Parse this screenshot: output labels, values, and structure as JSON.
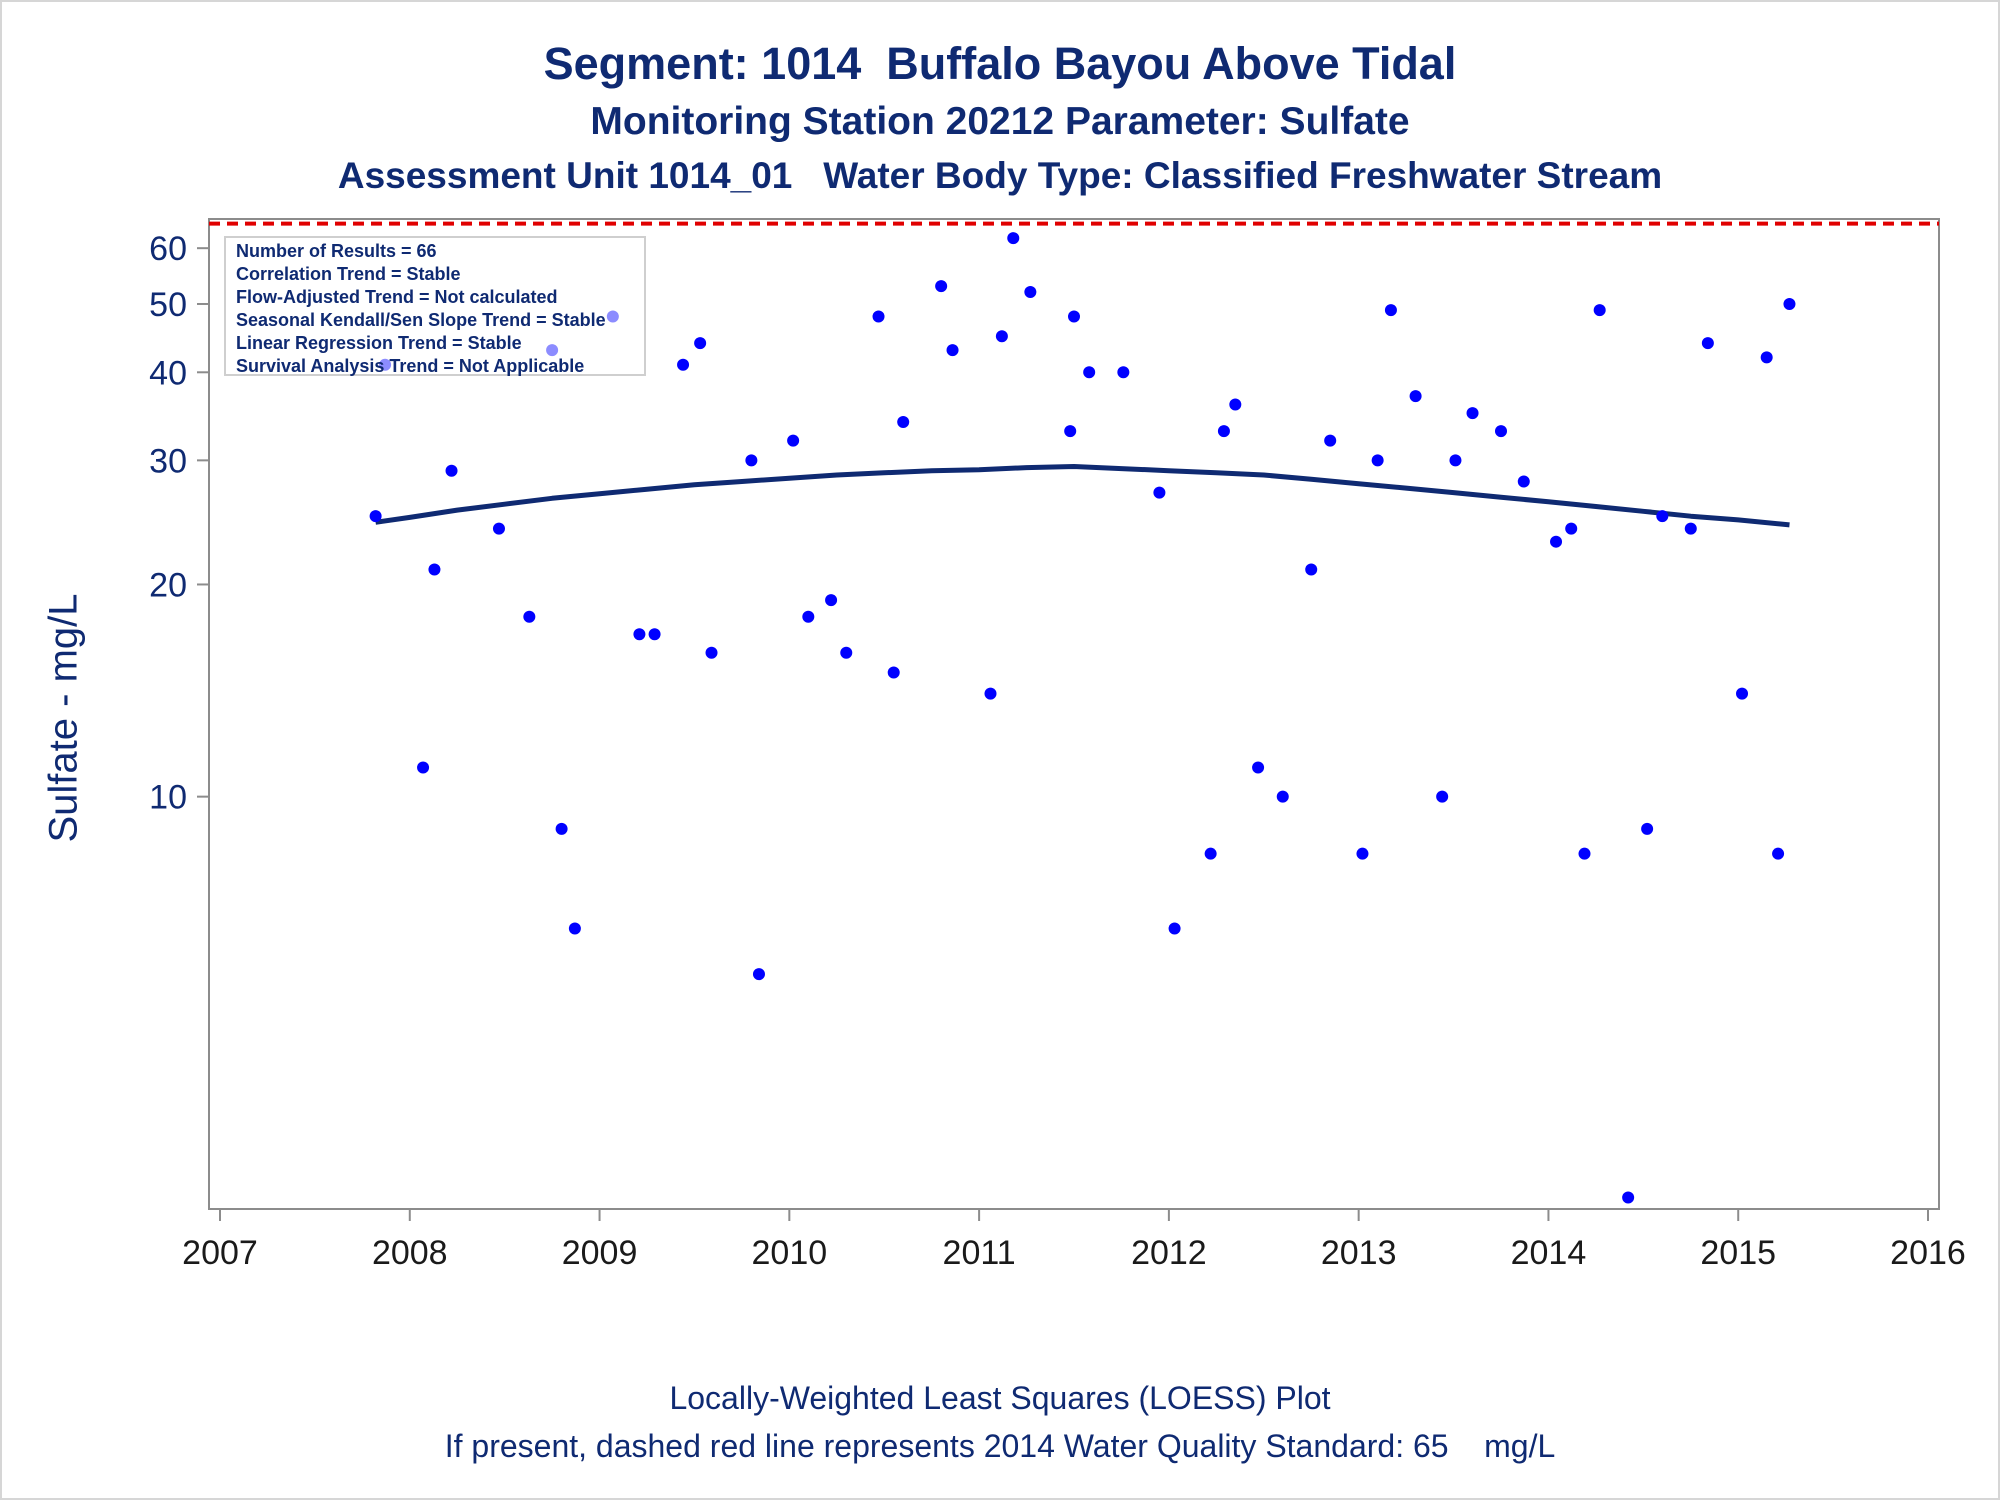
{
  "titles": {
    "line1": "Segment: 1014  Buffalo Bayou Above Tidal",
    "line2": "Monitoring Station 20212 Parameter: Sulfate",
    "line3": "Assessment Unit 1014_01   Water Body Type: Classified Freshwater Stream"
  },
  "stats": [
    "Number of Results = 66",
    "Correlation Trend = Stable",
    "Flow-Adjusted Trend = Not calculated",
    "Seasonal Kendall/Sen Slope Trend = Stable",
    "Linear Regression Trend = Stable",
    "Survival Analysis Trend = Not Applicable"
  ],
  "footer": {
    "line1": "Locally-Weighted Least Squares (LOESS) Plot",
    "line2": "If present, dashed red line represents 2014 Water Quality Standard: 65    mg/L"
  },
  "colors": {
    "text": "#0f2a72",
    "points": "#0000ff",
    "loess": "#0f2a72",
    "standard_line": "#e00000",
    "axis": "#8c8c8c"
  },
  "chart_data": {
    "type": "scatter",
    "ylabel": "Sulfate - mg/L",
    "xlabel": "",
    "y_scale": "log",
    "xlim": [
      2007,
      2016
    ],
    "ylim": [
      2.6,
      66
    ],
    "x_ticks": [
      "2007",
      "2008",
      "2009",
      "2010",
      "2011",
      "2012",
      "2013",
      "2014",
      "2015",
      "2016"
    ],
    "y_ticks": [
      10,
      20,
      30,
      40,
      50,
      60
    ],
    "standard": {
      "value": 65,
      "unit": "mg/L",
      "style": "dashed",
      "color": "red"
    },
    "points": [
      [
        2007.82,
        25
      ],
      [
        2007.87,
        41
      ],
      [
        2008.07,
        11
      ],
      [
        2008.13,
        21
      ],
      [
        2008.22,
        29
      ],
      [
        2008.47,
        24
      ],
      [
        2008.63,
        18
      ],
      [
        2008.75,
        43
      ],
      [
        2008.8,
        9
      ],
      [
        2008.87,
        6.5
      ],
      [
        2009.07,
        48
      ],
      [
        2009.21,
        17
      ],
      [
        2009.29,
        17
      ],
      [
        2009.44,
        41
      ],
      [
        2009.53,
        44
      ],
      [
        2009.59,
        16
      ],
      [
        2009.8,
        30
      ],
      [
        2009.84,
        5.6
      ],
      [
        2010.02,
        32
      ],
      [
        2010.1,
        18
      ],
      [
        2010.22,
        19
      ],
      [
        2010.3,
        16
      ],
      [
        2010.47,
        48
      ],
      [
        2010.55,
        15
      ],
      [
        2010.6,
        34
      ],
      [
        2010.8,
        53
      ],
      [
        2010.86,
        43
      ],
      [
        2011.06,
        14
      ],
      [
        2011.12,
        45
      ],
      [
        2011.18,
        62
      ],
      [
        2011.27,
        52
      ],
      [
        2011.48,
        33
      ],
      [
        2011.5,
        48
      ],
      [
        2011.58,
        40
      ],
      [
        2011.76,
        40
      ],
      [
        2011.95,
        27
      ],
      [
        2012.03,
        6.5
      ],
      [
        2012.22,
        8.3
      ],
      [
        2012.29,
        33
      ],
      [
        2012.35,
        36
      ],
      [
        2012.47,
        11
      ],
      [
        2012.6,
        10
      ],
      [
        2012.75,
        21
      ],
      [
        2012.85,
        32
      ],
      [
        2013.02,
        8.3
      ],
      [
        2013.1,
        30
      ],
      [
        2013.17,
        49
      ],
      [
        2013.3,
        37
      ],
      [
        2013.44,
        10
      ],
      [
        2013.51,
        30
      ],
      [
        2013.6,
        35
      ],
      [
        2013.75,
        33
      ],
      [
        2013.87,
        28
      ],
      [
        2014.04,
        23
      ],
      [
        2014.12,
        24
      ],
      [
        2014.19,
        8.3
      ],
      [
        2014.27,
        49
      ],
      [
        2014.42,
        2.7
      ],
      [
        2014.52,
        9
      ],
      [
        2014.6,
        25
      ],
      [
        2014.75,
        24
      ],
      [
        2014.84,
        44
      ],
      [
        2015.02,
        14
      ],
      [
        2015.15,
        42
      ],
      [
        2015.21,
        8.3
      ],
      [
        2015.27,
        50
      ]
    ],
    "loess": [
      [
        2007.82,
        24.5
      ],
      [
        2008.0,
        24.9
      ],
      [
        2008.25,
        25.5
      ],
      [
        2008.5,
        26.0
      ],
      [
        2008.75,
        26.5
      ],
      [
        2009.0,
        26.9
      ],
      [
        2009.25,
        27.3
      ],
      [
        2009.5,
        27.7
      ],
      [
        2009.75,
        28.0
      ],
      [
        2010.0,
        28.3
      ],
      [
        2010.25,
        28.6
      ],
      [
        2010.5,
        28.8
      ],
      [
        2010.75,
        29.0
      ],
      [
        2011.0,
        29.1
      ],
      [
        2011.25,
        29.3
      ],
      [
        2011.5,
        29.4
      ],
      [
        2011.75,
        29.2
      ],
      [
        2012.0,
        29.0
      ],
      [
        2012.25,
        28.8
      ],
      [
        2012.5,
        28.6
      ],
      [
        2012.75,
        28.2
      ],
      [
        2013.0,
        27.8
      ],
      [
        2013.25,
        27.4
      ],
      [
        2013.5,
        27.0
      ],
      [
        2013.75,
        26.6
      ],
      [
        2014.0,
        26.2
      ],
      [
        2014.25,
        25.8
      ],
      [
        2014.5,
        25.4
      ],
      [
        2014.75,
        25.0
      ],
      [
        2015.0,
        24.7
      ],
      [
        2015.27,
        24.3
      ]
    ]
  }
}
